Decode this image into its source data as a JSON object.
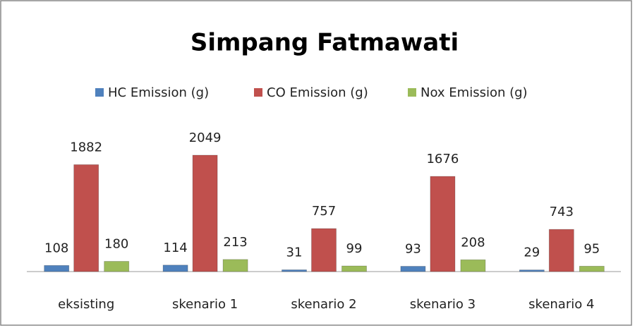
{
  "chart_data": {
    "type": "bar",
    "title": "Simpang Fatmawati",
    "categories": [
      "eksisting",
      "skenario 1",
      "skenario 2",
      "skenario 3",
      "skenario 4"
    ],
    "series": [
      {
        "name": "HC Emission (g)",
        "color": "#4f81bd",
        "values": [
          108,
          114,
          31,
          93,
          29
        ]
      },
      {
        "name": "CO Emission (g)",
        "color": "#c0504d",
        "values": [
          1882,
          2049,
          757,
          1676,
          743
        ]
      },
      {
        "name": "Nox Emission (g)",
        "color": "#9bbb59",
        "values": [
          180,
          213,
          99,
          208,
          95
        ]
      }
    ],
    "legend": "top"
  }
}
